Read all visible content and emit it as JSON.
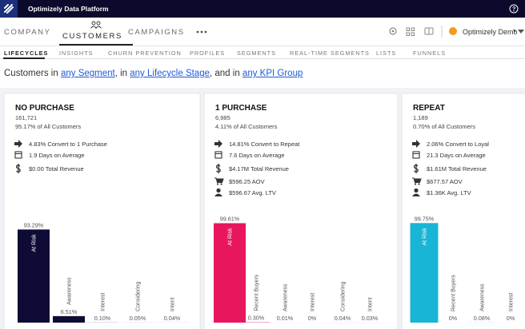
{
  "header": {
    "title": "Optimizely Data Platform"
  },
  "nav": {
    "tabs": [
      "COMPANY",
      "CUSTOMERS",
      "CAMPAIGNS"
    ],
    "account": "Optimizely Demo"
  },
  "subnav": [
    "LIFECYCLES",
    "INSIGHTS",
    "CHURN PREVENTION",
    "PROFILES",
    "SEGMENTS",
    "REAL-TIME SEGMENTS",
    "LISTS",
    "FUNNELS"
  ],
  "filter": {
    "prefix": "Customers in",
    "segment": "any Segment",
    "sep1": ", in",
    "lifecycle": "any Lifecycle Stage",
    "sep2": ", and in",
    "kpi": "any KPI Group"
  },
  "panels": [
    {
      "title": "NO PURCHASE",
      "count": "161,721",
      "share": "95.17% of All Customers",
      "stats": [
        "4.83% Convert to 1 Purchase",
        "1.9 Days on Average",
        "$0.00 Total Revenue"
      ],
      "chart": {
        "categories": [
          "At Risk",
          "Awareness",
          "Interest",
          "Considering",
          "Intent"
        ],
        "values": [
          93.29,
          6.51,
          0.1,
          0.05,
          0.04
        ],
        "value_labels": [
          "93.29%",
          "6.51%",
          "0.10%",
          "0.05%",
          "0.04%"
        ],
        "color": "#0e0c35"
      }
    },
    {
      "title": "1 PURCHASE",
      "count": "6,985",
      "share": "4.11% of All Customers",
      "stats": [
        "14.81% Convert to Repeat",
        "7.6 Days on Average",
        "$4.17M Total Revenue",
        "$596.25 AOV",
        "$596.67 Avg. LTV"
      ],
      "chart": {
        "categories": [
          "At Risk",
          "Recent Buyers",
          "Awareness",
          "Interest",
          "Considering",
          "Intent"
        ],
        "values": [
          99.61,
          0.3,
          0.01,
          0,
          0.04,
          0.03
        ],
        "value_labels": [
          "99.61%",
          "0.30%",
          "0.01%",
          "0%",
          "0.04%",
          "0.03%"
        ],
        "color": "#e8175d"
      }
    },
    {
      "title": "REPEAT",
      "count": "1,189",
      "share": "0.70% of All Customers",
      "stats": [
        "2.06% Convert to Loyal",
        "21.3 Days on Average",
        "$1.61M Total Revenue",
        "$677.57 AOV",
        "$1.36K Avg. LTV"
      ],
      "chart": {
        "categories": [
          "At Risk",
          "Recent Buyers",
          "Awareness",
          "Interest"
        ],
        "values": [
          99.75,
          0,
          0.08,
          0
        ],
        "value_labels": [
          "99.75%",
          "0%",
          "0.08%",
          "0%"
        ],
        "color": "#19b5d6"
      }
    }
  ]
}
